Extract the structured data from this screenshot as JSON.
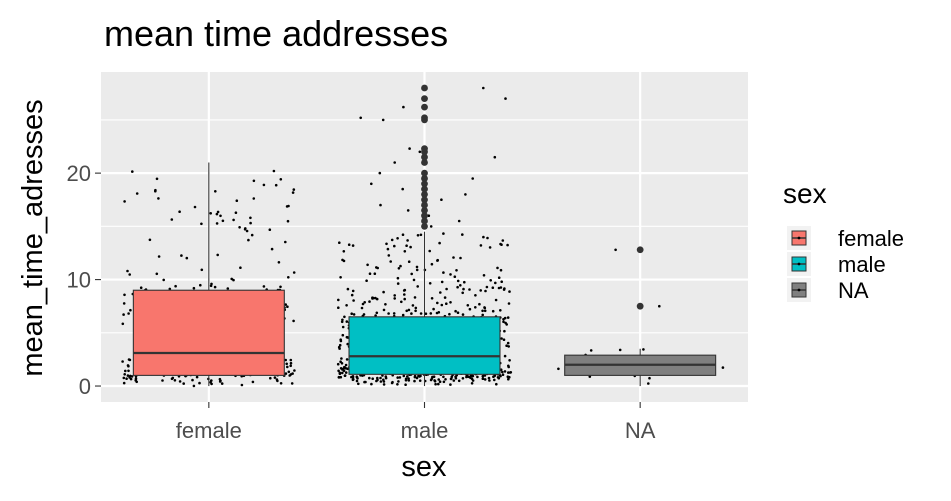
{
  "chart_data": {
    "type": "boxplot",
    "title": "mean time addresses",
    "xlabel": "sex",
    "ylabel": "mean_time_adresses",
    "categories": [
      "female",
      "male",
      "NA"
    ],
    "ylim": [
      -1.5,
      29.5
    ],
    "yticks": [
      0,
      10,
      20
    ],
    "grid": true,
    "legend": {
      "title": "sex",
      "position": "right",
      "items": [
        {
          "label": "female",
          "color": "#F8766D"
        },
        {
          "label": "male",
          "color": "#00BFC4"
        },
        {
          "label": "NA",
          "color": "#7F7F7F"
        }
      ]
    },
    "boxes": [
      {
        "category": "female",
        "color": "#F8766D",
        "q1": 1.0,
        "median": 3.1,
        "q3": 9.0,
        "whisker_low": 0.0,
        "whisker_high": 21.0,
        "outliers": [],
        "jitter_count": 330
      },
      {
        "category": "male",
        "color": "#00BFC4",
        "q1": 1.1,
        "median": 2.8,
        "q3": 6.5,
        "whisker_low": 0.0,
        "whisker_high": 14.5,
        "outliers": [
          15.0,
          15.5,
          16.0,
          16.5,
          17.0,
          17.5,
          18.0,
          18.5,
          19.0,
          19.5,
          20.0,
          21.0,
          21.5,
          22.0,
          22.3,
          25.0,
          25.2,
          26.2,
          27.0,
          28.0
        ],
        "jitter_count": 700
      },
      {
        "category": "NA",
        "color": "#7F7F7F",
        "q1": 1.0,
        "median": 2.0,
        "q3": 2.9,
        "whisker_low": 0.0,
        "whisker_high": 3.5,
        "outliers": [
          7.5,
          12.8
        ],
        "jitter_count": 14
      }
    ]
  }
}
